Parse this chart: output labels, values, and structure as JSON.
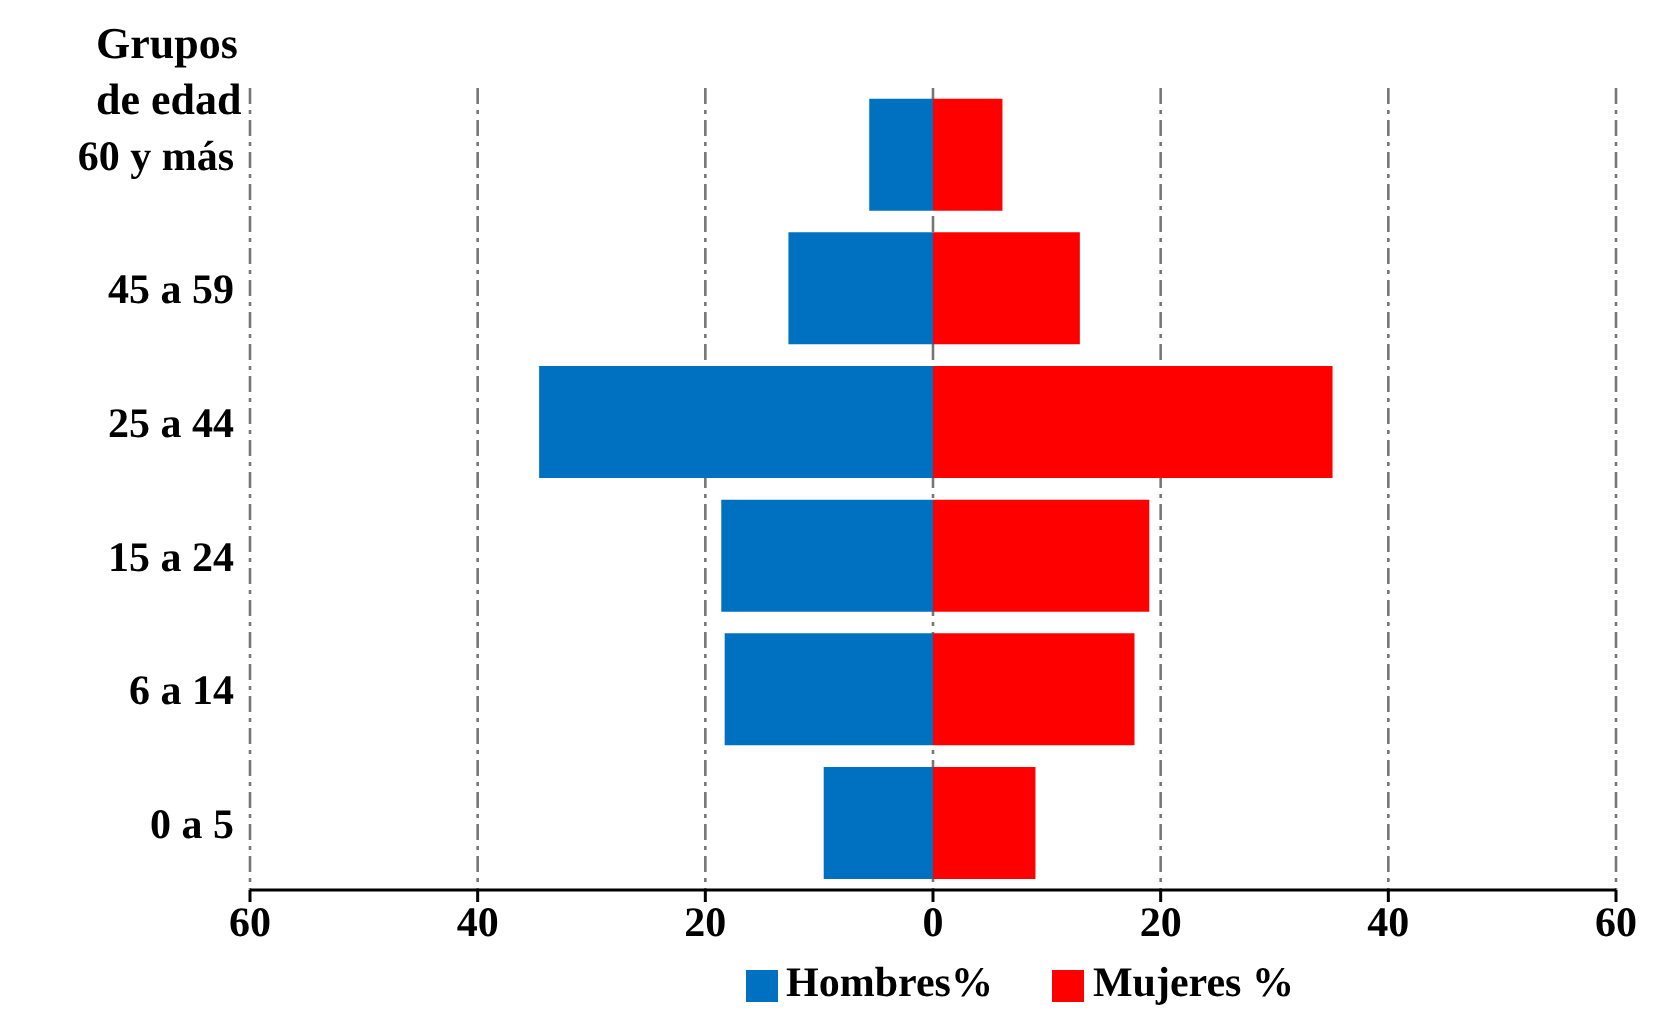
{
  "chart_data": {
    "type": "bar",
    "orientation": "horizontal",
    "stacked": true,
    "ylabel": "Grupos de edad",
    "categories": [
      "60 y más",
      "45 a 59",
      "25 a 44",
      "15 a 24",
      "6 a 14",
      "0 a 5"
    ],
    "series": [
      {
        "name": "Hombres%",
        "color": "#0070c0",
        "values": [
          -5.6,
          -12.7,
          -34.6,
          -18.6,
          -18.3,
          -9.6
        ]
      },
      {
        "name": "Mujeres %",
        "color": "#ff0000",
        "values": [
          6.1,
          12.9,
          35.1,
          19.0,
          17.7,
          9.0
        ]
      }
    ],
    "xlim": [
      -60,
      60
    ],
    "xticks": [
      {
        "value": -60,
        "label": "60"
      },
      {
        "value": -40,
        "label": "40"
      },
      {
        "value": -20,
        "label": "20"
      },
      0,
      20,
      40,
      60
    ],
    "grid": "x",
    "legend": "bottom"
  }
}
